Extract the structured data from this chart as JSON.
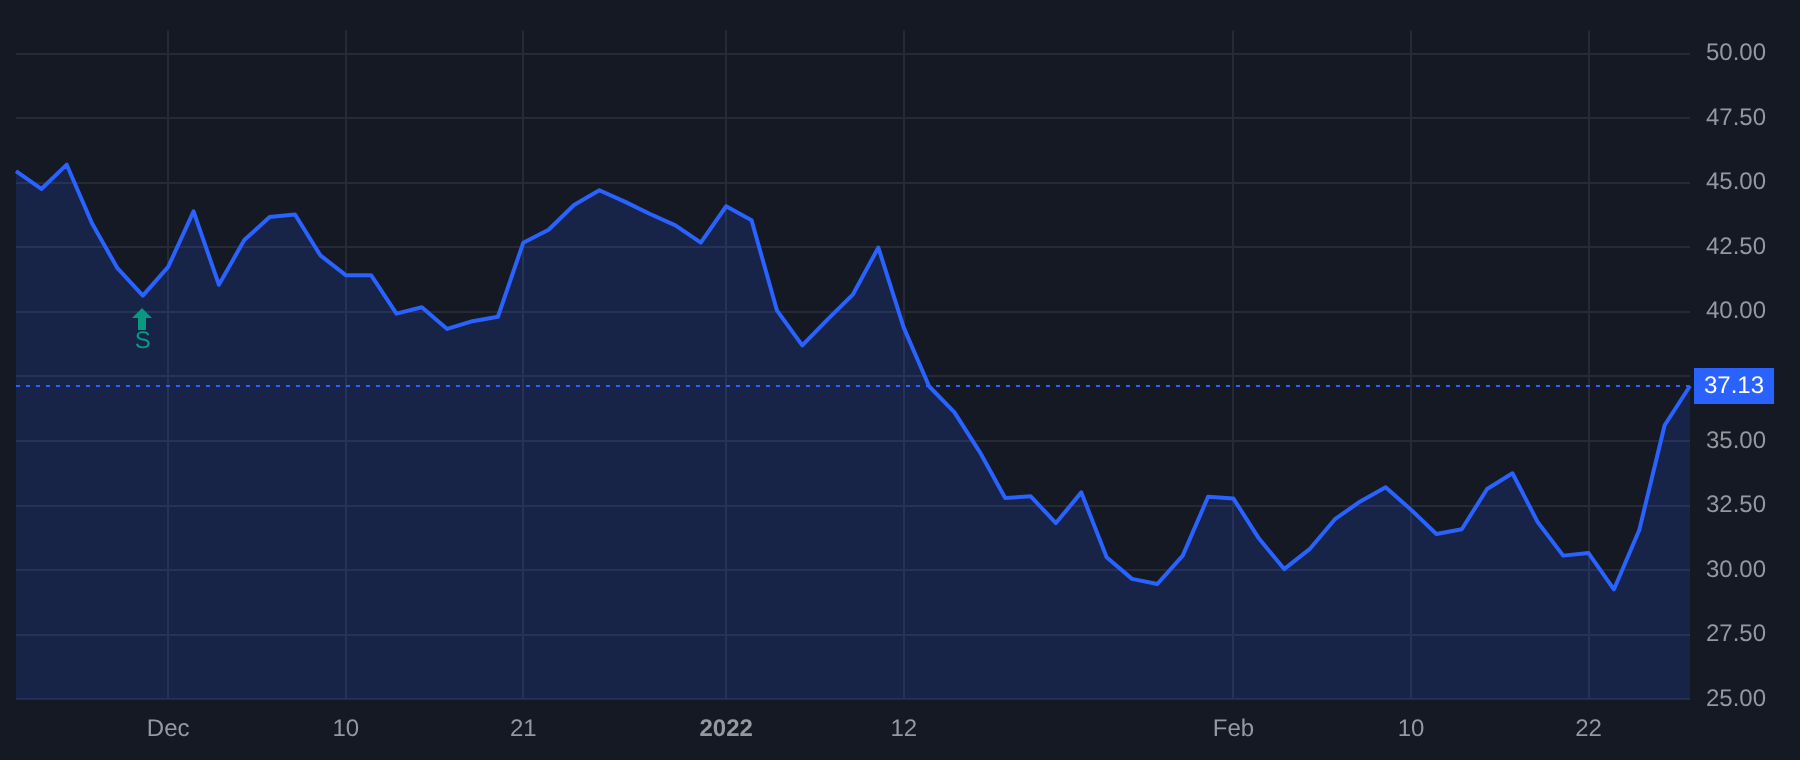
{
  "chart_data": {
    "type": "area",
    "categories": [
      null,
      null,
      null,
      null,
      null,
      null,
      "Dec",
      null,
      null,
      null,
      null,
      null,
      null,
      "10",
      null,
      null,
      null,
      null,
      null,
      null,
      "21",
      null,
      null,
      null,
      null,
      null,
      null,
      null,
      "2022",
      null,
      null,
      null,
      null,
      null,
      null,
      "12",
      null,
      null,
      null,
      null,
      null,
      null,
      null,
      null,
      null,
      null,
      null,
      null,
      "Feb",
      null,
      null,
      null,
      null,
      null,
      null,
      "10",
      null,
      null,
      null,
      null,
      null,
      null,
      "22",
      null,
      null,
      null,
      null
    ],
    "series": [
      {
        "color": "#2962ff",
        "values": [
          45.45,
          44.76,
          45.7,
          43.42,
          41.69,
          40.63,
          41.74,
          43.89,
          41.05,
          42.78,
          43.67,
          43.77,
          42.19,
          41.42,
          41.42,
          39.93,
          40.18,
          39.34,
          39.64,
          39.81,
          42.68,
          43.18,
          44.14,
          44.71,
          44.27,
          43.79,
          43.35,
          42.68,
          44.09,
          43.55,
          40.06,
          38.7,
          39.71,
          40.68,
          42.49,
          39.39,
          37.12,
          36.11,
          34.57,
          32.79,
          32.86,
          31.82,
          33.01,
          30.5,
          29.66,
          29.46,
          30.56,
          32.84,
          32.77,
          31.23,
          30.04,
          30.81,
          31.97,
          32.66,
          33.21,
          32.34,
          31.4,
          31.58,
          33.14,
          33.75,
          31.85,
          30.56,
          30.66,
          29.25,
          31.55,
          35.61,
          37.13
        ]
      }
    ],
    "ylim": [
      25,
      50.9
    ],
    "yticks": [
      {
        "value": 25,
        "label": "25.00"
      },
      {
        "value": 27.5,
        "label": "27.50"
      },
      {
        "value": 30,
        "label": "30.00"
      },
      {
        "value": 32.5,
        "label": "32.50"
      },
      {
        "value": 35,
        "label": "35.00"
      },
      {
        "value": 37.5,
        "label": null
      },
      {
        "value": 40,
        "label": "40.00"
      },
      {
        "value": 42.5,
        "label": "42.50"
      },
      {
        "value": 45,
        "label": "45.00"
      },
      {
        "value": 47.5,
        "label": "47.50"
      },
      {
        "value": 50,
        "label": "50.00"
      }
    ],
    "ref_lines": [
      {
        "axis": "y",
        "value": 37.13,
        "label": "37.13",
        "color": "#2962ff",
        "line_style": "dotted"
      }
    ],
    "annotations": [
      {
        "text": "S",
        "y": 40.63
      }
    ],
    "grid": true,
    "legend": false,
    "marker": "none",
    "line_style": "solid"
  }
}
